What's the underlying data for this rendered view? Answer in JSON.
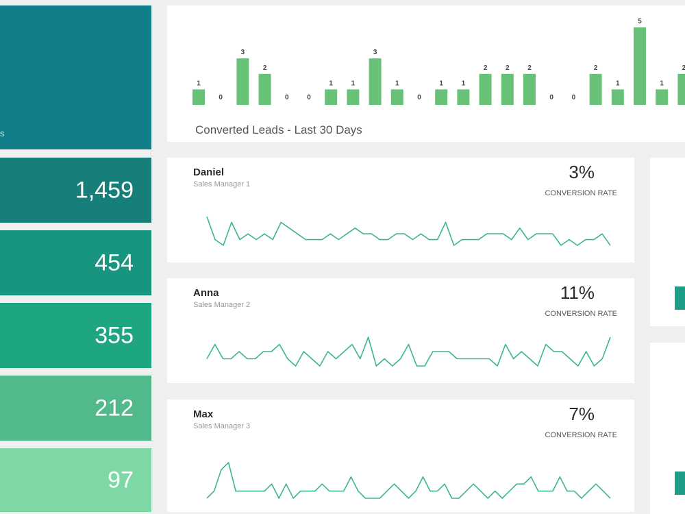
{
  "funnel": {
    "tiles": [
      {
        "value": "",
        "caption": "s",
        "color": "#117f8a"
      },
      {
        "value": "1,459",
        "color": "#167f7a"
      },
      {
        "value": "454",
        "color": "#17957f"
      },
      {
        "value": "355",
        "color": "#1ea582"
      },
      {
        "value": "212",
        "color": "#52b98b"
      },
      {
        "value": "97",
        "color": "#7dd8a6"
      }
    ]
  },
  "chart_data": {
    "type": "bar",
    "title": "Converted Leads - Last 30 Days",
    "values": [
      1,
      0,
      3,
      2,
      0,
      0,
      1,
      1,
      3,
      1,
      0,
      1,
      1,
      2,
      2,
      2,
      0,
      0,
      2,
      1,
      5,
      1,
      2
    ],
    "bar_color": "#67c277",
    "xlabel": "",
    "ylabel": ""
  },
  "managers": [
    {
      "name": "Daniel",
      "role": "Sales Manager 1",
      "rate": "3%",
      "rate_label": "CONVERSION RATE",
      "sparkline": [
        7,
        3,
        2,
        6,
        3,
        4,
        3,
        4,
        3,
        6,
        5,
        4,
        3,
        3,
        3,
        4,
        3,
        4,
        5,
        4,
        4,
        3,
        3,
        4,
        4,
        3,
        4,
        3,
        3,
        6,
        2,
        3,
        3,
        3,
        4,
        4,
        4,
        3,
        5,
        3,
        4,
        4,
        4,
        2,
        3,
        2,
        3,
        3,
        4,
        2
      ],
      "line_color": "#3bb592"
    },
    {
      "name": "Anna",
      "role": "Sales Manager 2",
      "rate": "11%",
      "rate_label": "CONVERSION RATE",
      "sparkline": [
        3,
        5,
        3,
        3,
        4,
        3,
        3,
        4,
        4,
        5,
        3,
        2,
        4,
        3,
        2,
        4,
        3,
        4,
        5,
        3,
        6,
        2,
        3,
        2,
        3,
        5,
        2,
        2,
        4,
        4,
        4,
        3,
        3,
        3,
        3,
        3,
        2,
        5,
        3,
        4,
        3,
        2,
        5,
        4,
        4,
        3,
        2,
        4,
        2,
        3,
        6
      ],
      "line_color": "#3bb592"
    },
    {
      "name": "Max",
      "role": "Sales Manager 3",
      "rate": "7%",
      "rate_label": "CONVERSION RATE",
      "sparkline": [
        2,
        3,
        6,
        7,
        3,
        3,
        3,
        3,
        3,
        4,
        2,
        4,
        2,
        3,
        3,
        3,
        4,
        3,
        3,
        3,
        5,
        3,
        2,
        2,
        2,
        3,
        4,
        3,
        2,
        3,
        5,
        3,
        3,
        4,
        2,
        2,
        3,
        4,
        3,
        2,
        3,
        2,
        3,
        4,
        4,
        5,
        3,
        3,
        3,
        5,
        3,
        3,
        2,
        3,
        4,
        3,
        2
      ],
      "line_color": "#3bb592"
    }
  ]
}
